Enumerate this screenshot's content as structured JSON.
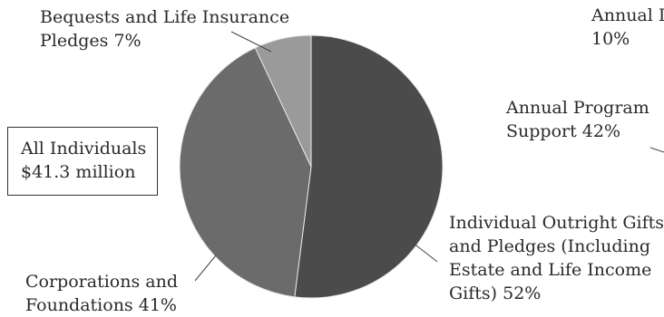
{
  "summary_box": {
    "line1": "All Individuals",
    "line2": "$41.3 million"
  },
  "labels": {
    "bequests": {
      "line1": "Bequests and Life Insurance",
      "line2": "Pledges  7%"
    },
    "corporations": {
      "line1": "Corporations and",
      "line2": "Foundations  41%"
    },
    "outright": {
      "line1": "Individual Outright Gifts",
      "line2": "and Pledges (Including",
      "line3": "Estate and Life Income",
      "line4": "Gifts)  52%"
    },
    "annual_top": {
      "line1": "Annual I",
      "line2": "10%"
    },
    "annual_program": {
      "line1": "Annual Program",
      "line2": "Support  42%"
    }
  },
  "chart_data": [
    {
      "type": "pie",
      "title": "",
      "slices": [
        {
          "label": "Individual Outright Gifts and Pledges (Including Estate and Life Income Gifts)",
          "value": 52,
          "color": "#4b4b4b"
        },
        {
          "label": "Corporations and Foundations",
          "value": 41,
          "color": "#6b6b6b"
        },
        {
          "label": "Bequests and Life Insurance Pledges",
          "value": 7,
          "color": "#9a9a9a"
        }
      ],
      "center_note": "All Individuals $41.3 million"
    },
    {
      "type": "pie",
      "title": "",
      "partial": true,
      "slices": [
        {
          "label": "Annual I",
          "value": 10
        },
        {
          "label": "Annual Program Support",
          "value": 42
        }
      ]
    }
  ]
}
